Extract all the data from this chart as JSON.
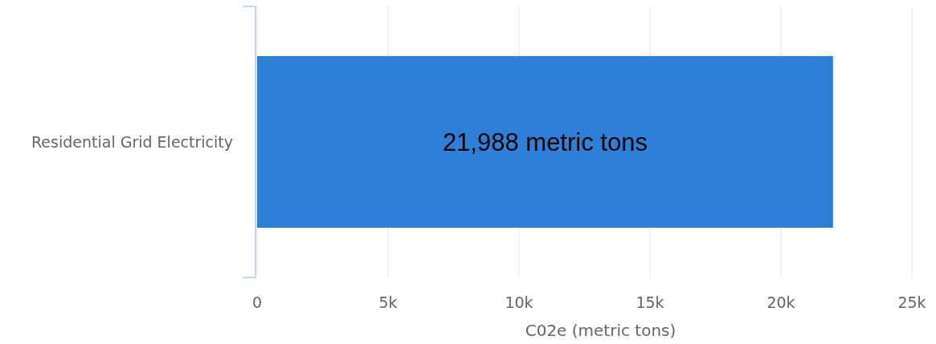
{
  "chart_data": {
    "type": "bar",
    "orientation": "horizontal",
    "categories": [
      "Residential Grid Electricity"
    ],
    "values": [
      21988
    ],
    "value_labels": [
      "21,988 metric tons"
    ],
    "color": "#2e7fd8",
    "xlabel": "C02e (metric tons)",
    "xlim": [
      0,
      25000
    ],
    "xticks": [
      0,
      {
        "value": 5000,
        "label": "5k"
      },
      {
        "value": 10000,
        "label": "10k"
      },
      {
        "value": 15000,
        "label": "15k"
      },
      {
        "value": 20000,
        "label": "20k"
      },
      {
        "value": 25000,
        "label": "25k"
      }
    ],
    "grid": "x"
  }
}
